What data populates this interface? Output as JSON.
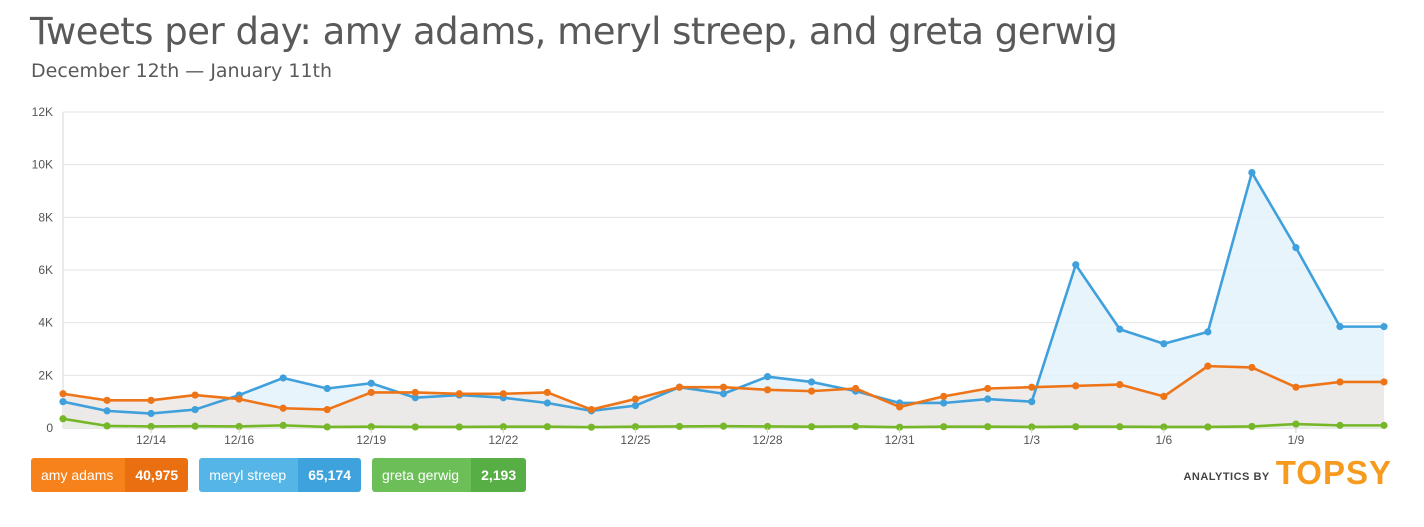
{
  "header": {
    "title": "Tweets per day: amy adams, meryl streep, and greta gerwig",
    "subtitle": "December 12th — January 11th"
  },
  "legend": [
    {
      "name": "amy adams",
      "count": "40,975",
      "color": "#f7821c",
      "count_color": "#ea6f10"
    },
    {
      "name": "meryl streep",
      "count": "65,174",
      "color": "#55b5e6",
      "count_color": "#3ea3dc"
    },
    {
      "name": "greta gerwig",
      "count": "2,193",
      "color": "#6cbf58",
      "count_color": "#57ae45"
    }
  ],
  "brand": {
    "prefix": "ANALYTICS BY",
    "logo": "TOPSY"
  },
  "chart_data": {
    "type": "line",
    "title": "Tweets per day: amy adams, meryl streep, and greta gerwig",
    "subtitle": "December 12th — January 11th",
    "x": [
      "12/12",
      "12/13",
      "12/14",
      "12/15",
      "12/16",
      "12/17",
      "12/18",
      "12/19",
      "12/20",
      "12/21",
      "12/22",
      "12/23",
      "12/24",
      "12/25",
      "12/26",
      "12/27",
      "12/28",
      "12/29",
      "12/30",
      "12/31",
      "1/1",
      "1/2",
      "1/3",
      "1/4",
      "1/5",
      "1/6",
      "1/7",
      "1/8",
      "1/9",
      "1/10",
      "1/11"
    ],
    "x_tick_labels": [
      "12/14",
      "12/16",
      "12/19",
      "12/22",
      "12/25",
      "12/28",
      "12/31",
      "1/3",
      "1/6",
      "1/9"
    ],
    "y_tick_labels": [
      "0",
      "2K",
      "4K",
      "6K",
      "8K",
      "10K",
      "12K"
    ],
    "ylim": [
      0,
      12000
    ],
    "grid": true,
    "series": [
      {
        "name": "meryl streep",
        "color": "#3fa0dc",
        "fill": "#e4f2fb",
        "values": [
          1000,
          650,
          550,
          700,
          1250,
          1900,
          1500,
          1700,
          1150,
          1250,
          1150,
          950,
          650,
          850,
          1550,
          1300,
          1950,
          1750,
          1400,
          950,
          950,
          1100,
          1000,
          6200,
          3750,
          3200,
          3650,
          9700,
          6850,
          3850,
          3850
        ]
      },
      {
        "name": "amy adams",
        "color": "#ee7418",
        "fill": "#ebe7e4",
        "values": [
          1300,
          1050,
          1050,
          1250,
          1100,
          750,
          700,
          1350,
          1350,
          1300,
          1300,
          1350,
          700,
          1100,
          1550,
          1550,
          1450,
          1400,
          1500,
          800,
          1200,
          1500,
          1550,
          1600,
          1650,
          1200,
          2350,
          2300,
          1550,
          1750,
          1750
        ]
      },
      {
        "name": "greta gerwig",
        "color": "#76b72a",
        "fill": "#e9eee3",
        "values": [
          350,
          80,
          60,
          70,
          60,
          100,
          40,
          50,
          40,
          40,
          50,
          50,
          30,
          50,
          60,
          70,
          60,
          50,
          60,
          30,
          50,
          50,
          40,
          50,
          50,
          40,
          40,
          60,
          150,
          100,
          100
        ]
      }
    ]
  }
}
